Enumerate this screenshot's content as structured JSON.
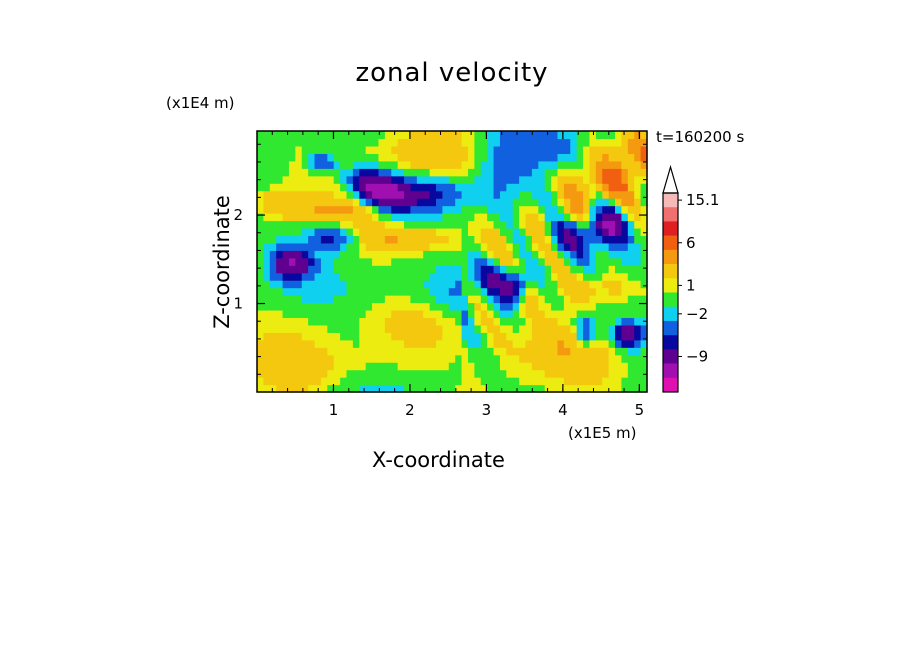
{
  "chart_data": {
    "type": "heatmap",
    "title": "zonal velocity",
    "xlabel": "X-coordinate",
    "ylabel": "Z-coordinate",
    "x_unit": "(x1E5 m)",
    "y_unit": "(x1E4 m)",
    "time_label": "t=160200 s",
    "xlim": [
      0,
      5.1
    ],
    "ylim": [
      0,
      2.95
    ],
    "x_ticks": [
      "1",
      "2",
      "3",
      "4",
      "5"
    ],
    "y_ticks": [
      "1",
      "2"
    ],
    "x_tick_values": [
      1,
      2,
      3,
      4,
      5
    ],
    "y_tick_values": [
      1,
      2
    ],
    "colorbar": {
      "labels": [
        "15.1",
        "6",
        "1",
        "−2",
        "−9"
      ],
      "colors": [
        "#f7b8b8",
        "#f07070",
        "#e02020",
        "#f06010",
        "#f59a10",
        "#f5c810",
        "#ecec10",
        "#30e830",
        "#10d0f0",
        "#1060e0",
        "#0808a0",
        "#600090",
        "#a010b0",
        "#e010b0"
      ]
    },
    "field": {
      "nx": 61,
      "nz": 35,
      "background_value": 0.3,
      "features": [
        {
          "x": 1.6,
          "z": 2.3,
          "sx": 0.28,
          "sz": 0.14,
          "a": -11,
          "tilt": -0.35
        },
        {
          "x": 2.2,
          "z": 2.25,
          "sx": 0.35,
          "sz": 0.12,
          "a": -5
        },
        {
          "x": 0.45,
          "z": 1.45,
          "sx": 0.18,
          "sz": 0.12,
          "a": -9
        },
        {
          "x": 1.0,
          "z": 1.75,
          "sx": 0.22,
          "sz": 0.1,
          "a": -6
        },
        {
          "x": 0.85,
          "z": 2.6,
          "sx": 0.12,
          "sz": 0.08,
          "a": -6
        },
        {
          "x": 1.9,
          "z": 1.75,
          "sx": 0.55,
          "sz": 0.13,
          "a": 4.5
        },
        {
          "x": 1.1,
          "z": 2.05,
          "sx": 0.45,
          "sz": 0.1,
          "a": 3.5
        },
        {
          "x": 2.2,
          "z": 2.65,
          "sx": 0.6,
          "sz": 0.2,
          "a": 2.5
        },
        {
          "x": 3.2,
          "z": 2.45,
          "sx": 0.25,
          "sz": 0.35,
          "a": -3
        },
        {
          "x": 4.3,
          "z": 2.3,
          "sx": 0.3,
          "sz": 0.25,
          "a": 3.5
        },
        {
          "x": 4.6,
          "z": 1.9,
          "sx": 0.18,
          "sz": 0.15,
          "a": -9
        },
        {
          "x": 4.1,
          "z": 1.75,
          "sx": 0.2,
          "sz": 0.12,
          "a": -5
        },
        {
          "x": 3.35,
          "z": 1.2,
          "sx": 0.12,
          "sz": 0.12,
          "a": -9
        },
        {
          "x": 3.1,
          "z": 1.35,
          "sx": 0.15,
          "sz": 0.12,
          "a": -4
        },
        {
          "x": 4.5,
          "z": 1.2,
          "sx": 0.4,
          "sz": 0.15,
          "a": 3.5
        },
        {
          "x": 4.85,
          "z": 0.65,
          "sx": 0.15,
          "sz": 0.1,
          "a": -9
        },
        {
          "x": 4.3,
          "z": 0.7,
          "sx": 0.1,
          "sz": 0.12,
          "a": -6
        },
        {
          "x": 4.0,
          "z": 0.5,
          "sx": 0.4,
          "sz": 0.25,
          "a": 2.5
        },
        {
          "x": 3.3,
          "z": 0.6,
          "sx": 0.35,
          "sz": 0.35,
          "a": 2
        },
        {
          "x": 2.4,
          "z": 0.7,
          "sx": 0.5,
          "sz": 0.25,
          "a": 1.5
        },
        {
          "x": 0.5,
          "z": 0.6,
          "sx": 0.5,
          "sz": 0.35,
          "a": 1.5
        },
        {
          "x": 1.3,
          "z": 0.3,
          "sx": 0.6,
          "sz": 0.15,
          "a": 1.2
        },
        {
          "x": 2.6,
          "z": 1.15,
          "sx": 0.4,
          "sz": 0.18,
          "a": -2.5
        },
        {
          "x": 1.5,
          "z": 1.15,
          "sx": 0.4,
          "sz": 0.15,
          "a": -1
        },
        {
          "x": 4.9,
          "z": 2.6,
          "sx": 0.2,
          "sz": 0.25,
          "a": 4
        },
        {
          "x": 0.25,
          "z": 2.15,
          "sx": 0.2,
          "sz": 0.12,
          "a": 3
        },
        {
          "x": 3.8,
          "z": 2.75,
          "sx": 0.35,
          "sz": 0.15,
          "a": -2.5
        }
      ]
    }
  }
}
